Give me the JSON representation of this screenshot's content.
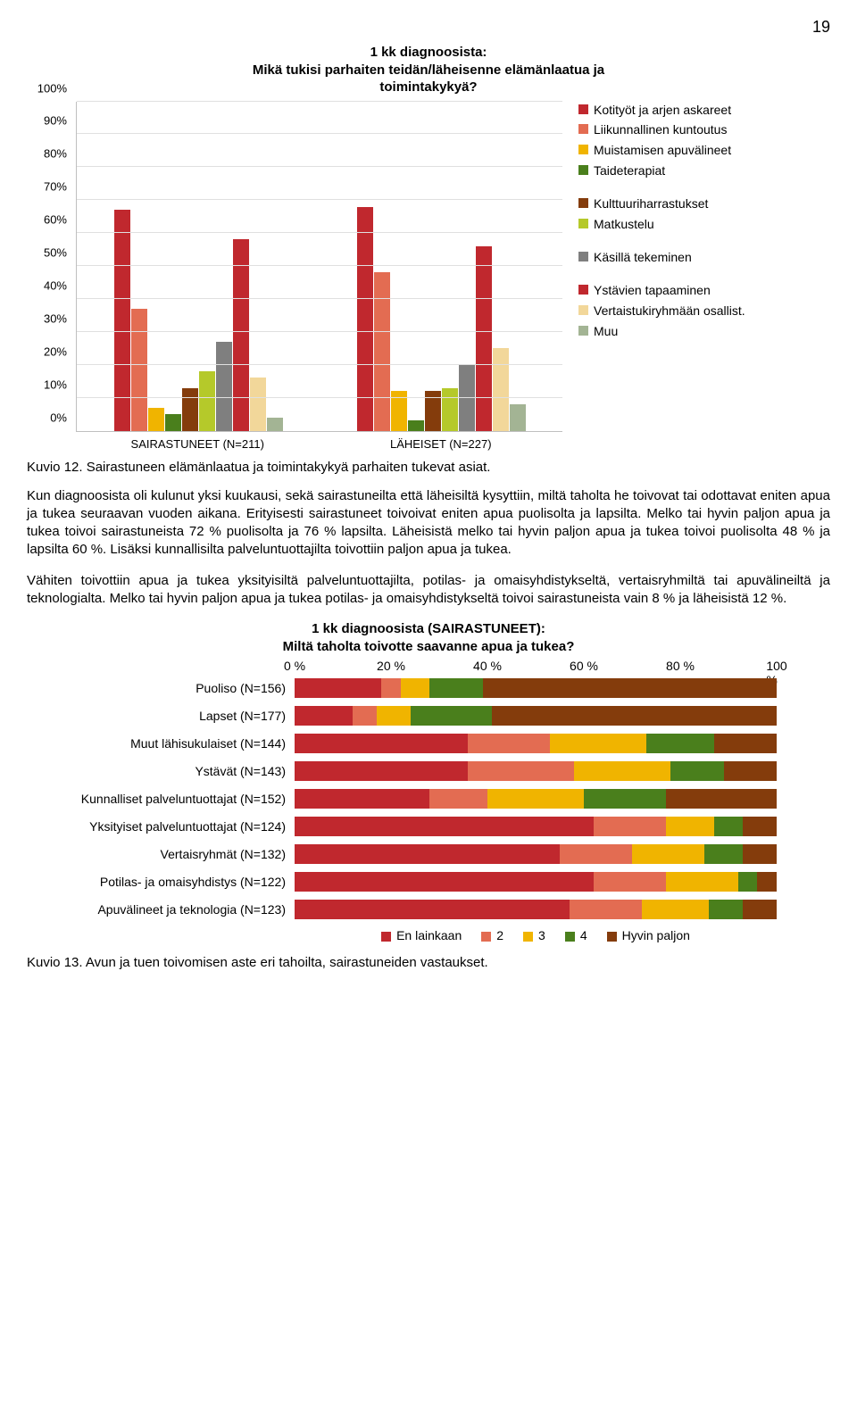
{
  "page_number": "19",
  "chart1": {
    "title_line1": "1 kk diagnoosista:",
    "title_line2": "Mikä tukisi parhaiten teidän/läheisenne elämänlaatua ja",
    "title_line3": "toimintakykyä?",
    "ylabels": [
      "0%",
      "10%",
      "20%",
      "30%",
      "40%",
      "50%",
      "60%",
      "70%",
      "80%",
      "90%",
      "100%"
    ],
    "ymax": 100,
    "categories": [
      "SAIRASTUNEET (N=211)",
      "LÄHEISET (N=227)"
    ],
    "series": [
      {
        "label": "Kotityöt ja arjen askareet",
        "color": "#c0282e",
        "values": [
          67,
          68
        ]
      },
      {
        "label": "Liikunnallinen kuntoutus",
        "color": "#e36c52",
        "values": [
          37,
          48
        ]
      },
      {
        "label": "Muistamisen apuvälineet",
        "color": "#f0b400",
        "values": [
          7,
          12
        ]
      },
      {
        "label": "Taideterapiat",
        "color": "#4a7f1c",
        "values": [
          5,
          3
        ]
      },
      {
        "label": "",
        "color": null,
        "values": null,
        "spacer": true
      },
      {
        "label": "Kulttuuriharrastukset",
        "color": "#843c0c",
        "values": [
          13,
          12
        ]
      },
      {
        "label": "Matkustelu",
        "color": "#b5c92a",
        "values": [
          18,
          13
        ]
      },
      {
        "label": "",
        "color": null,
        "values": null,
        "spacer": true
      },
      {
        "label": "Käsillä tekeminen",
        "color": "#7f7f7f",
        "values": [
          27,
          20
        ]
      },
      {
        "label": "",
        "color": null,
        "values": null,
        "spacer": true
      },
      {
        "label": "Ystävien tapaaminen",
        "color": "#c0282e",
        "values": [
          58,
          56
        ]
      },
      {
        "label": "Vertaistukiryhmään osallist.",
        "color": "#f2d79a",
        "values": [
          16,
          25
        ]
      },
      {
        "label": "Muu",
        "color": "#a3b494",
        "values": [
          4,
          8
        ]
      }
    ]
  },
  "caption1": "Kuvio 12. Sairastuneen elämänlaatua ja toimintakykyä parhaiten tukevat asiat.",
  "para1": "Kun diagnoosista oli kulunut yksi kuukausi, sekä sairastuneilta että läheisiltä kysyttiin, miltä taholta he toivovat tai odottavat eniten apua ja tukea seuraavan vuoden aikana. Erityisesti sairastuneet toivoivat eniten apua puolisolta ja lapsilta. Melko tai hyvin paljon apua ja tukea toivoi sairastuneista 72 % puolisolta ja 76 % lapsilta. Läheisistä melko tai hyvin paljon apua ja tukea toivoi puolisolta 48 % ja lapsilta 60 %. Lisäksi kunnallisilta palveluntuottajilta toivottiin paljon apua ja tukea.",
  "para2": "Vähiten toivottiin apua ja tukea yksityisiltä palveluntuottajilta, potilas- ja omaisyhdistykseltä, vertaisryhmiltä tai apuvälineiltä ja teknologialta. Melko tai hyvin paljon apua ja tukea potilas- ja omaisyhdistykseltä toivoi sairastuneista vain 8 % ja läheisistä 12 %.",
  "chart2": {
    "title_line1": "1 kk diagnoosista (SAIRASTUNEET):",
    "title_line2": "Miltä taholta toivotte saavanne apua ja tukea?",
    "xlabels": [
      "0 %",
      "20 %",
      "40 %",
      "60 %",
      "80 %",
      "100 %"
    ],
    "segments_colors": [
      "#c0282e",
      "#e36c52",
      "#f0b400",
      "#4a7f1c",
      "#843c0c"
    ],
    "legend": [
      "En lainkaan",
      "2",
      "3",
      "4",
      "Hyvin paljon"
    ],
    "rows": [
      {
        "label": "Puoliso (N=156)",
        "values": [
          18,
          4,
          6,
          11,
          61
        ]
      },
      {
        "label": "Lapset (N=177)",
        "values": [
          12,
          5,
          7,
          17,
          59
        ]
      },
      {
        "label": "Muut lähisukulaiset (N=144)",
        "values": [
          36,
          17,
          20,
          14,
          13
        ]
      },
      {
        "label": "Ystävät (N=143)",
        "values": [
          36,
          22,
          20,
          11,
          11
        ]
      },
      {
        "label": "Kunnalliset palveluntuottajat (N=152)",
        "values": [
          28,
          12,
          20,
          17,
          23
        ]
      },
      {
        "label": "Yksityiset palveluntuottajat (N=124)",
        "values": [
          62,
          15,
          10,
          6,
          7
        ]
      },
      {
        "label": "Vertaisryhmät (N=132)",
        "values": [
          55,
          15,
          15,
          8,
          7
        ]
      },
      {
        "label": "Potilas- ja omaisyhdistys (N=122)",
        "values": [
          62,
          15,
          15,
          4,
          4
        ]
      },
      {
        "label": "Apuvälineet ja teknologia (N=123)",
        "values": [
          57,
          15,
          14,
          7,
          7
        ]
      }
    ]
  },
  "caption2": "Kuvio 13. Avun ja tuen toivomisen aste eri tahoilta, sairastuneiden vastaukset."
}
